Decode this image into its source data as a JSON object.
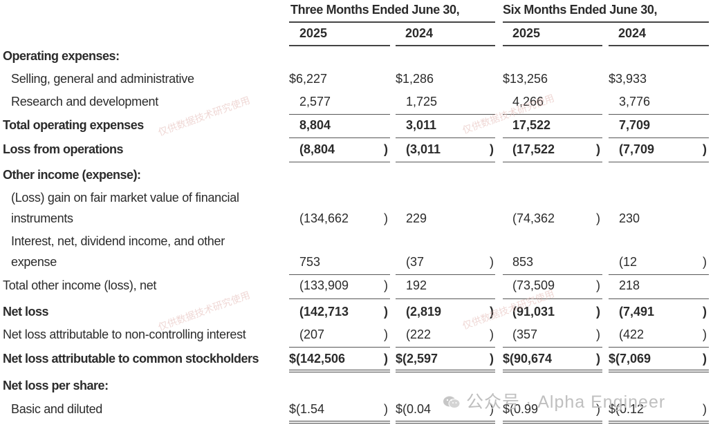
{
  "header": {
    "three_months": "Three Months Ended June 30,",
    "six_months": "Six Months Ended June 30,",
    "years": [
      "2025",
      "2024",
      "2025",
      "2024"
    ]
  },
  "rows": [
    {
      "label": "Operating expenses:",
      "bold": true,
      "section": true
    },
    {
      "label": "Selling, general and administrative",
      "indent": true,
      "values": [
        "$6,227",
        "$1,286",
        "$13,256",
        "$3,933"
      ]
    },
    {
      "label": "Research and development",
      "indent": true,
      "values": [
        "2,577",
        "1,725",
        "4,266",
        "3,776"
      ]
    },
    {
      "label": "Total operating expenses",
      "bold": true,
      "values": [
        "8,804",
        "3,011",
        "17,522",
        "7,709"
      ]
    },
    {
      "label": "Loss from operations",
      "bold": true,
      "values": [
        "(8,804",
        "(3,011",
        "(17,522",
        "(7,709"
      ]
    },
    {
      "label": "Other income (expense):",
      "bold": true,
      "section": true
    },
    {
      "label": "(Loss) gain on fair market value of financial",
      "label2": "instruments",
      "indent": true,
      "values": [
        "(134,662",
        "229",
        "(74,362",
        "230"
      ]
    },
    {
      "label": "Interest, net, dividend income, and other",
      "label2": "expense",
      "indent": true,
      "values": [
        "753",
        "(37",
        "853",
        "(12"
      ]
    },
    {
      "label": "Total other income (loss), net",
      "values": [
        "(133,909",
        "192",
        "(73,509",
        "218"
      ]
    },
    {
      "label": "Net loss",
      "bold": true,
      "values": [
        "(142,713",
        "(2,819",
        "(91,031",
        "(7,491"
      ]
    },
    {
      "label": "Net loss attributable to non-controlling interest",
      "values": [
        "(207",
        "(222",
        "(357",
        "(422"
      ]
    },
    {
      "label": "Net loss attributable to common stockholders",
      "bold": true,
      "values": [
        "$(142,506",
        "$(2,597",
        "$(90,674",
        "$(7,069"
      ]
    },
    {
      "label": "Net loss per share:",
      "bold": true,
      "section": true
    },
    {
      "label": "Basic and diluted",
      "indent": true,
      "values": [
        "$(1.54",
        "$(0.04",
        "$(0.99",
        "$(0.12"
      ]
    }
  ],
  "watermark": "仅供数据技术研究使用",
  "brand": "公众号 · Alpha Engineer",
  "brand_icon": "wechat-icon"
}
